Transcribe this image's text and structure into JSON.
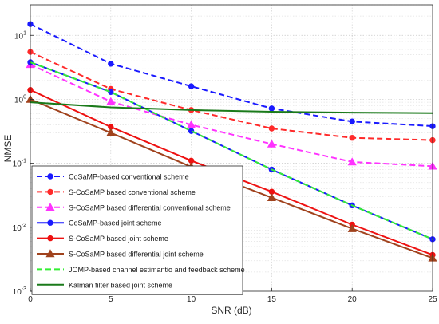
{
  "chart_data": {
    "type": "line",
    "xlabel": "SNR (dB)",
    "ylabel": "NMSE",
    "x": [
      0,
      5,
      10,
      15,
      20,
      25
    ],
    "xlim": [
      0,
      25
    ],
    "ylim": [
      0.001,
      30
    ],
    "yscale": "log",
    "grid": true,
    "legend_position": "bottom-left",
    "x_ticks": [
      "0",
      "5",
      "10",
      "15",
      "20",
      "25"
    ],
    "y_ticks": [
      {
        "base": "10",
        "exp": "-3",
        "value": 0.001
      },
      {
        "base": "10",
        "exp": "-2",
        "value": 0.01
      },
      {
        "base": "10",
        "exp": "-1",
        "value": 0.1
      },
      {
        "base": "10",
        "exp": "0",
        "value": 1
      },
      {
        "base": "10",
        "exp": "1",
        "value": 10
      }
    ],
    "series": [
      {
        "name": "CoSaMP-based conventional scheme",
        "color": "#1a1aff",
        "dash": "dashed",
        "marker": "circle",
        "values": [
          15,
          3.6,
          1.6,
          0.72,
          0.45,
          0.38
        ]
      },
      {
        "name": "S-CoSaMP based conventional scheme",
        "color": "#ff2a2a",
        "dash": "dashed",
        "marker": "circle",
        "values": [
          5.5,
          1.45,
          0.68,
          0.35,
          0.25,
          0.23
        ]
      },
      {
        "name": "S-CoSaMP based differential conventional scheme",
        "color": "#ff33ff",
        "dash": "dashed",
        "marker": "triangle",
        "values": [
          3.5,
          0.92,
          0.4,
          0.2,
          0.105,
          0.09
        ]
      },
      {
        "name": "CoSaMP-based joint scheme",
        "color": "#1a1aff",
        "dash": "solid",
        "marker": "circle",
        "values": [
          3.8,
          1.3,
          0.32,
          0.08,
          0.022,
          0.0065
        ]
      },
      {
        "name": "S-CoSaMP based joint scheme",
        "color": "#ee1111",
        "dash": "solid",
        "marker": "circle",
        "values": [
          1.4,
          0.37,
          0.11,
          0.036,
          0.011,
          0.0037
        ]
      },
      {
        "name": "S-CoSaMP based differential joint scheme",
        "color": "#a0421d",
        "dash": "solid",
        "marker": "triangle",
        "values": [
          1.0,
          0.3,
          0.088,
          0.029,
          0.0095,
          0.0033
        ]
      },
      {
        "name": "JOMP-based channel estimantio and feedback scheme",
        "color": "#33ee33",
        "dash": "dashed",
        "marker": "none",
        "values": [
          3.8,
          1.3,
          0.32,
          0.08,
          0.022,
          0.0065
        ]
      },
      {
        "name": "Kalman filter based joint scheme",
        "color": "#1a7a1a",
        "dash": "solid",
        "marker": "none",
        "values": [
          0.9,
          0.75,
          0.68,
          0.64,
          0.62,
          0.61
        ]
      }
    ]
  }
}
